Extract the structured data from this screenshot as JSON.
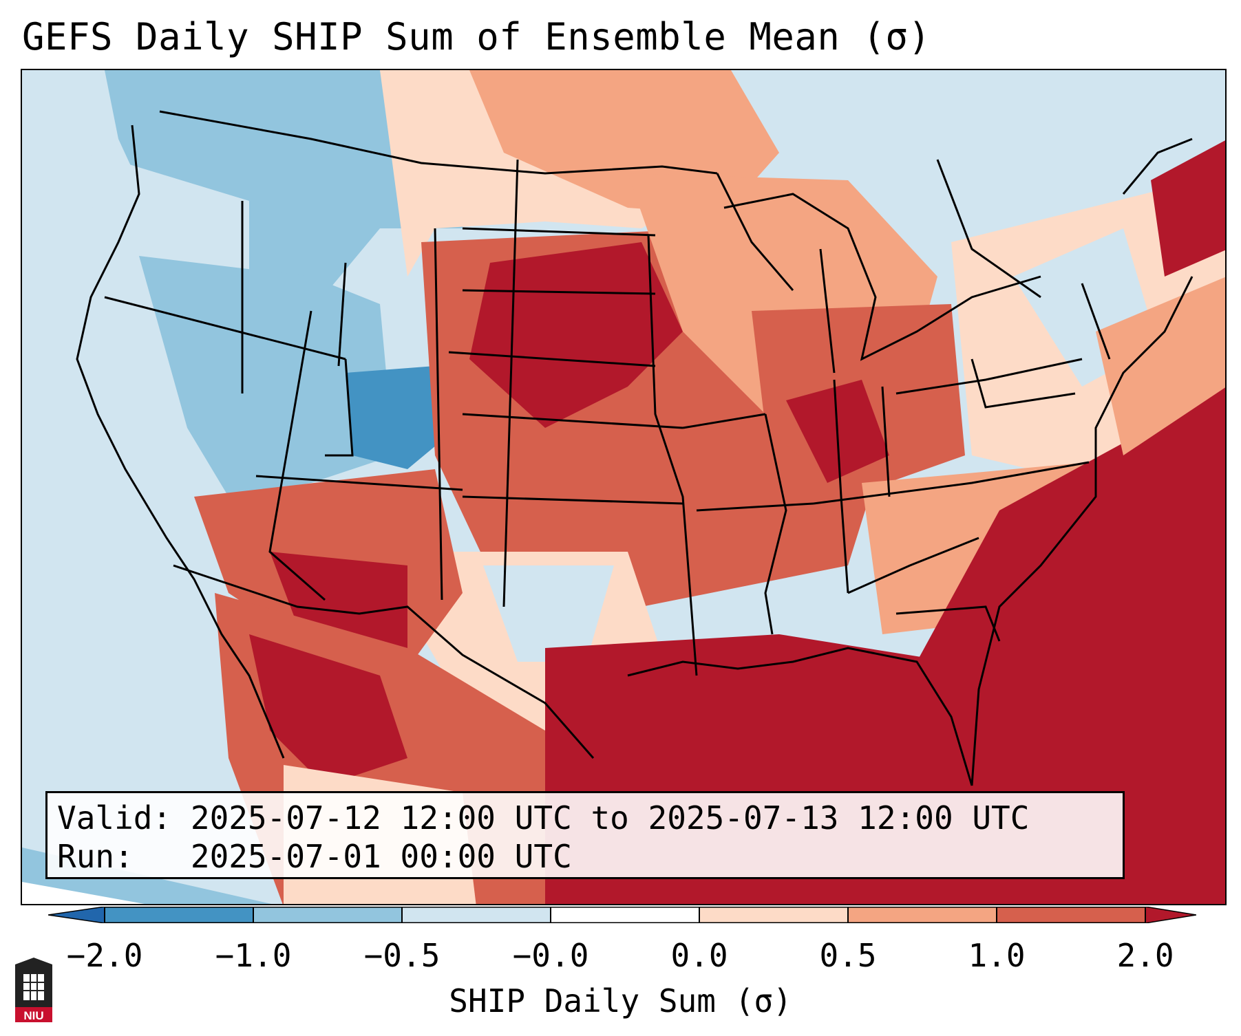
{
  "title": "GEFS Daily SHIP Sum of Ensemble Mean (σ)",
  "info": {
    "valid_label": "Valid:",
    "valid_value": "2025-07-12 12:00 UTC to 2025-07-13 12:00 UTC",
    "run_label": "Run:  ",
    "run_value": "2025-07-01 00:00 UTC"
  },
  "colorbar": {
    "label": "SHIP Daily Sum (σ)",
    "ticks": [
      "−2.0",
      "−1.0",
      "−0.5",
      "−0.0",
      "0.0",
      "0.5",
      "1.0",
      "2.0"
    ],
    "colors": [
      "#2166ac",
      "#4393c3",
      "#92c5de",
      "#d1e5f0",
      "#ffffff",
      "#fddbc7",
      "#f4a582",
      "#d6604d",
      "#b2182b"
    ]
  },
  "map_colors": {
    "ocean": "#d1e5f0",
    "strong_positive": "#b2182b",
    "positive": "#d6604d",
    "weak_positive": "#f4a582",
    "slight_positive": "#fddbc7",
    "slight_negative": "#d1e5f0",
    "negative": "#92c5de",
    "strong_negative": "#4393c3",
    "boundaries": "#000000"
  },
  "logo": {
    "text": "NIU",
    "icon": "niu-logo-icon"
  }
}
